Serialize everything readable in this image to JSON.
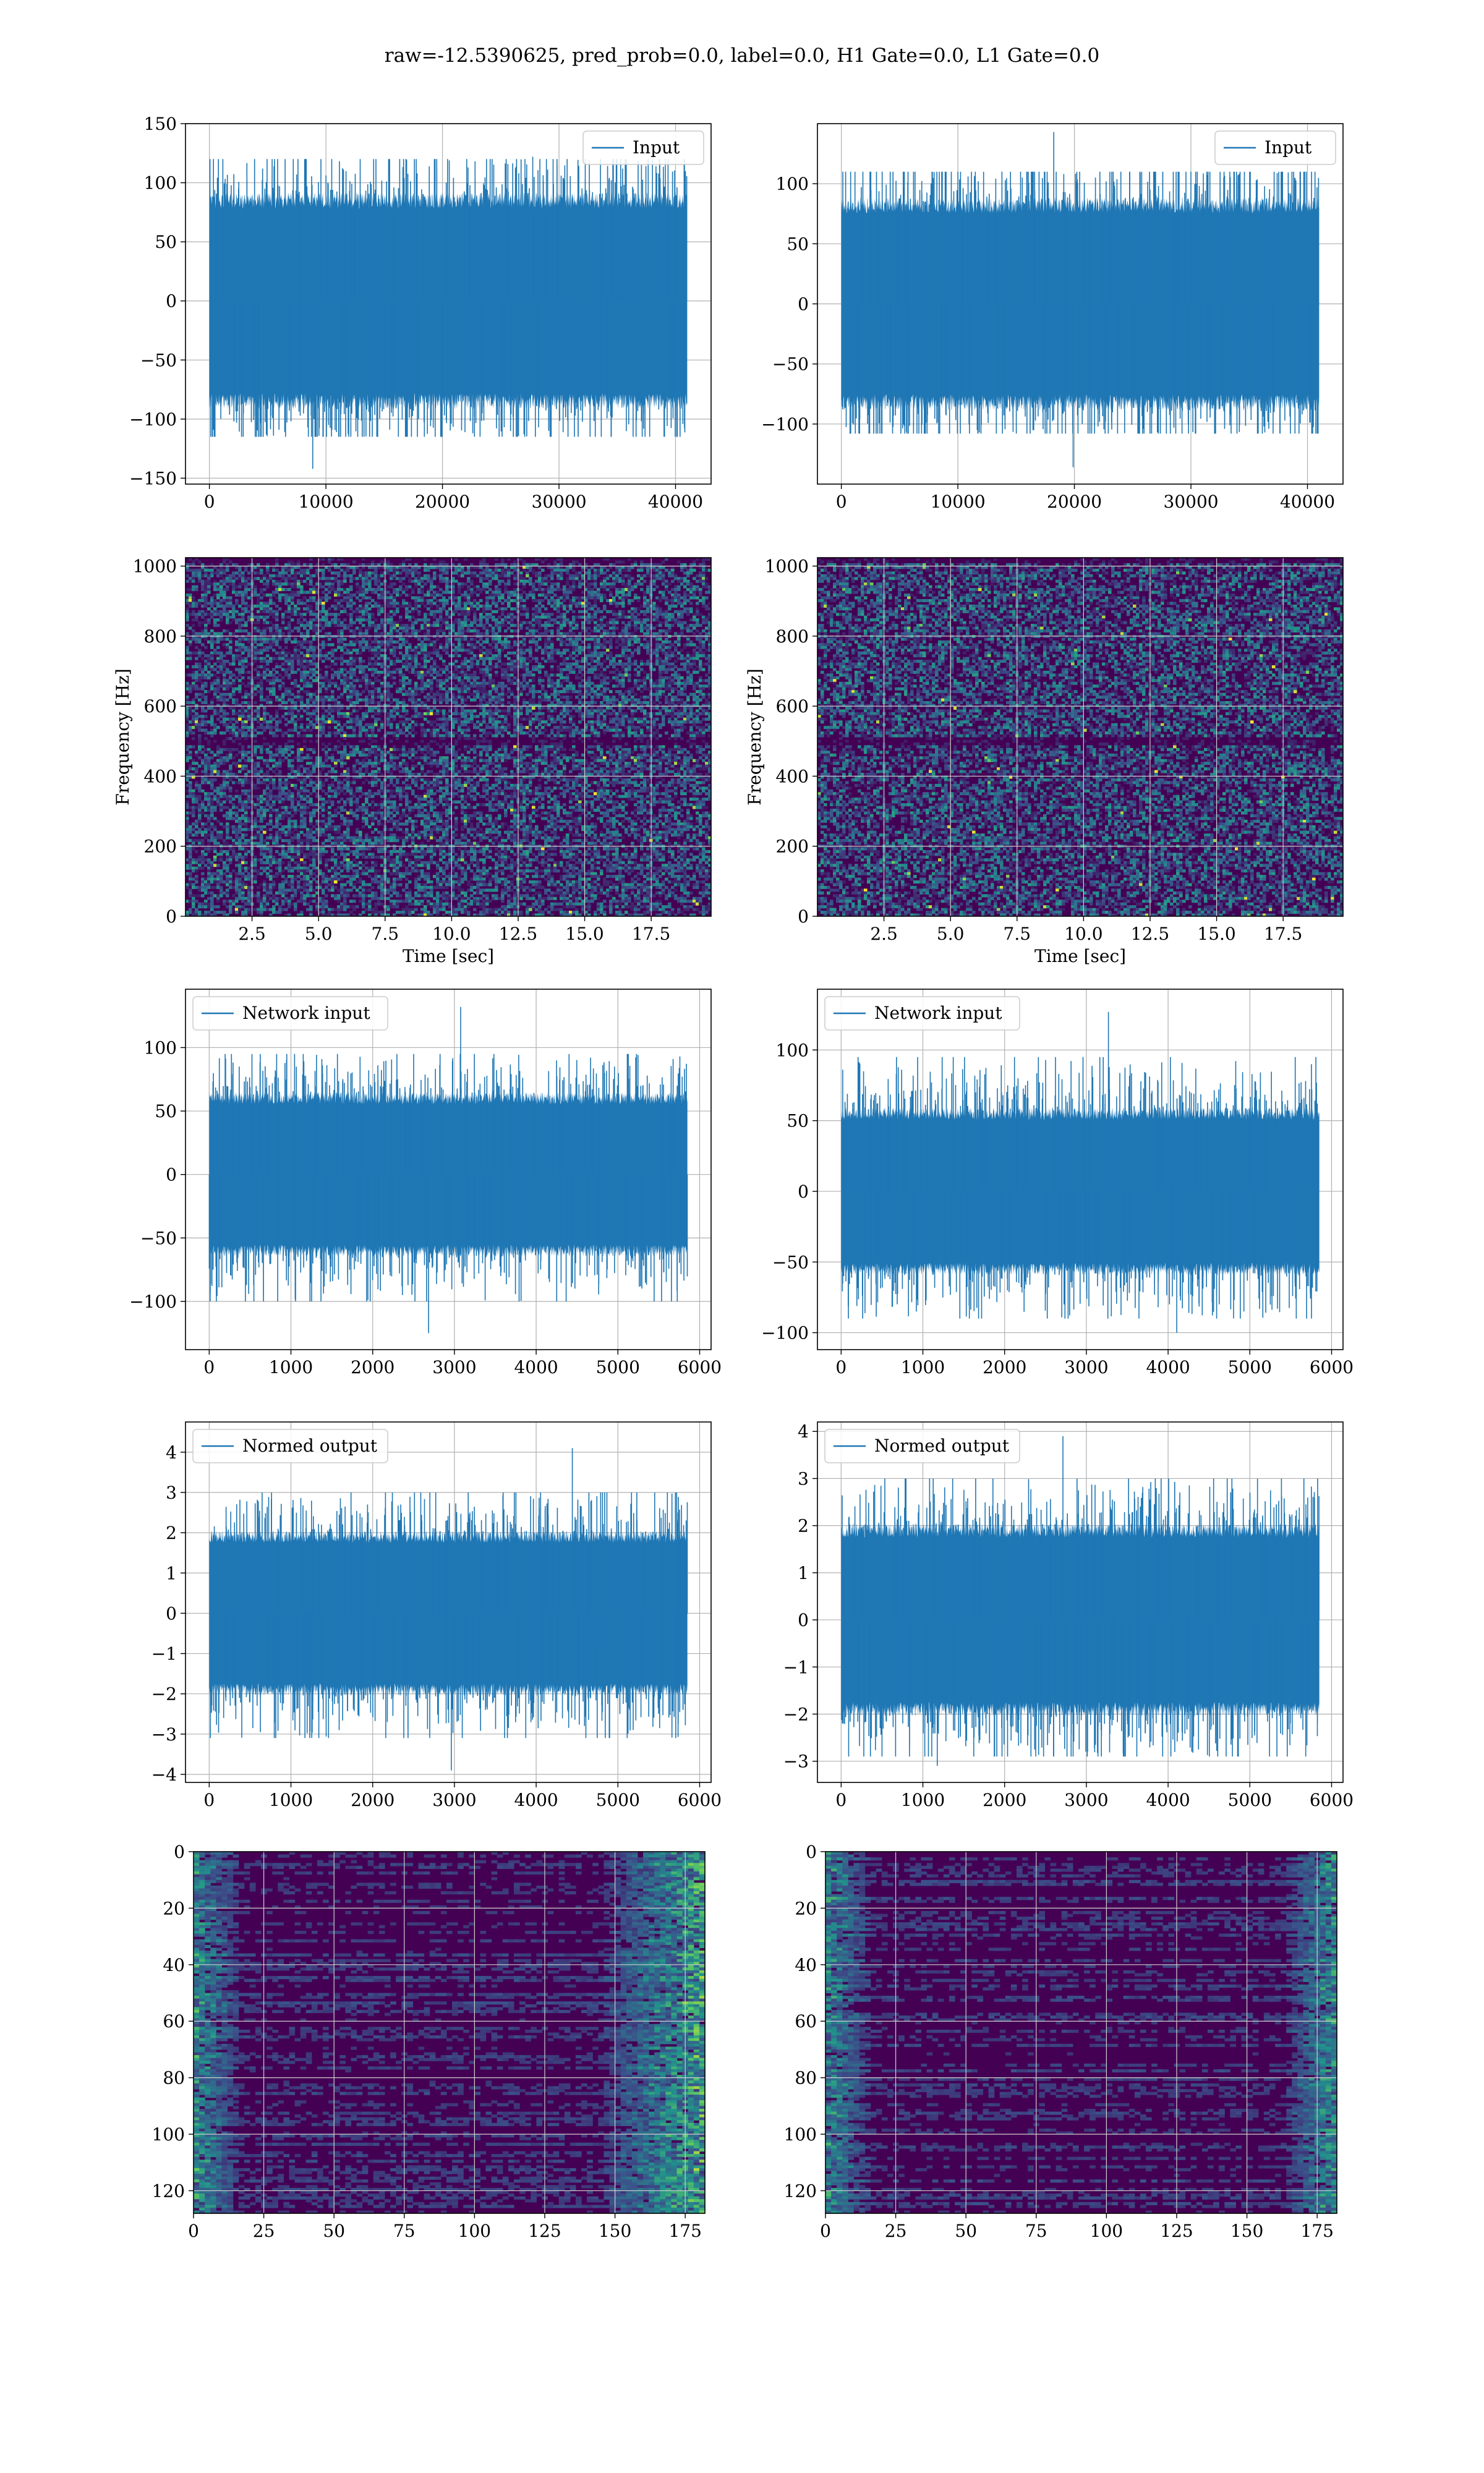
{
  "title": "raw=-12.5390625, pred_prob=0.0, label=0.0, H1 Gate=0.0, L1 Gate=0.0",
  "colors": {
    "line": "#1f77b4",
    "grid": "#b0b0b0",
    "viridis_low": "#440154",
    "viridis_mid1": "#3b528b",
    "viridis_mid2": "#21918c",
    "viridis_mid3": "#5ec962",
    "viridis_high": "#fde725"
  },
  "chart_data": [
    {
      "id": "row1-left",
      "type": "line",
      "legend": "Input",
      "legend_loc": "upper right",
      "xlim": [
        -2050,
        43050
      ],
      "ylim": [
        -155,
        150
      ],
      "xticks": [
        0,
        10000,
        20000,
        30000,
        40000
      ],
      "yticks": [
        -150,
        -100,
        -50,
        0,
        50,
        100,
        150
      ],
      "series": [
        {
          "x_range": [
            0,
            41000
          ],
          "envelope": [
            -85,
            85
          ],
          "typical_peak": [
            -115,
            120
          ],
          "max": 122,
          "min": -142
        }
      ]
    },
    {
      "id": "row1-right",
      "type": "line",
      "legend": "Input",
      "legend_loc": "upper right",
      "xlim": [
        -2050,
        43050
      ],
      "ylim": [
        -150,
        150
      ],
      "xticks": [
        0,
        10000,
        20000,
        30000,
        40000
      ],
      "yticks": [
        -100,
        -50,
        0,
        50,
        100
      ],
      "series": [
        {
          "x_range": [
            0,
            41000
          ],
          "envelope": [
            -82,
            82
          ],
          "typical_peak": [
            -108,
            110
          ],
          "max": 143,
          "min": -136
        }
      ]
    },
    {
      "id": "row2-left",
      "type": "heatmap",
      "subtype": "spectrogram",
      "xlabel": "Time [sec]",
      "ylabel": "Frequency [Hz]",
      "xlim": [
        0,
        19.75
      ],
      "ylim": [
        0,
        1024
      ],
      "xticks": [
        2.5,
        5.0,
        7.5,
        10.0,
        12.5,
        15.0,
        17.5
      ],
      "yticks": [
        0,
        200,
        400,
        600,
        800,
        1000
      ],
      "dark_band_hz": [
        500,
        1000
      ]
    },
    {
      "id": "row2-right",
      "type": "heatmap",
      "subtype": "spectrogram",
      "xlabel": "Time [sec]",
      "ylabel": "Frequency [Hz]",
      "xlim": [
        0,
        19.75
      ],
      "ylim": [
        0,
        1024
      ],
      "xticks": [
        2.5,
        5.0,
        7.5,
        10.0,
        12.5,
        15.0,
        17.5
      ],
      "yticks": [
        0,
        200,
        400,
        600,
        800,
        1000
      ],
      "dark_band_hz": [
        500,
        1000
      ]
    },
    {
      "id": "row3-left",
      "type": "line",
      "legend": "Network input",
      "legend_loc": "upper left",
      "xlim": [
        -290,
        6140
      ],
      "ylim": [
        -138,
        146
      ],
      "xticks": [
        0,
        1000,
        2000,
        3000,
        4000,
        5000,
        6000
      ],
      "yticks": [
        -100,
        -50,
        0,
        50,
        100
      ],
      "series": [
        {
          "x_range": [
            0,
            5850
          ],
          "envelope": [
            -60,
            60
          ],
          "typical_peak": [
            -100,
            95
          ],
          "max": 132,
          "min": -125
        }
      ]
    },
    {
      "id": "row3-right",
      "type": "line",
      "legend": "Network input",
      "legend_loc": "upper left",
      "xlim": [
        -290,
        6140
      ],
      "ylim": [
        -112,
        143
      ],
      "xticks": [
        0,
        1000,
        2000,
        3000,
        4000,
        5000,
        6000
      ],
      "yticks": [
        -100,
        -50,
        0,
        50,
        100
      ],
      "series": [
        {
          "x_range": [
            0,
            5850
          ],
          "envelope": [
            -55,
            55
          ],
          "typical_peak": [
            -90,
            95
          ],
          "max": 127,
          "min": -100
        }
      ]
    },
    {
      "id": "row4-left",
      "type": "line",
      "legend": "Normed output",
      "legend_loc": "upper left",
      "xlim": [
        -290,
        6140
      ],
      "ylim": [
        -4.2,
        4.75
      ],
      "xticks": [
        0,
        1000,
        2000,
        3000,
        4000,
        5000,
        6000
      ],
      "yticks": [
        -4,
        -3,
        -2,
        -1,
        0,
        1,
        2,
        3,
        4
      ],
      "series": [
        {
          "x_range": [
            0,
            5850
          ],
          "envelope": [
            -1.9,
            1.9
          ],
          "typical_peak": [
            -3.1,
            3.0
          ],
          "max": 4.1,
          "min": -3.9
        }
      ]
    },
    {
      "id": "row4-right",
      "type": "line",
      "legend": "Normed output",
      "legend_loc": "upper left",
      "xlim": [
        -290,
        6140
      ],
      "ylim": [
        -3.45,
        4.2
      ],
      "xticks": [
        0,
        1000,
        2000,
        3000,
        4000,
        5000,
        6000
      ],
      "yticks": [
        -3,
        -2,
        -1,
        0,
        1,
        2,
        3,
        4
      ],
      "series": [
        {
          "x_range": [
            0,
            5850
          ],
          "envelope": [
            -1.9,
            1.9
          ],
          "typical_peak": [
            -2.9,
            3.0
          ],
          "max": 3.9,
          "min": -3.1
        }
      ]
    },
    {
      "id": "row5-left",
      "type": "heatmap",
      "subtype": "matrix",
      "xlim": [
        0,
        182
      ],
      "ylim_inverted": [
        0,
        128
      ],
      "xticks": [
        0,
        25,
        50,
        75,
        100,
        125,
        150,
        175
      ],
      "yticks": [
        0,
        20,
        40,
        60,
        80,
        100,
        120
      ],
      "bright_regions": [
        "left edge columns 0-15",
        "right edge columns 150-182"
      ]
    },
    {
      "id": "row5-right",
      "type": "heatmap",
      "subtype": "matrix",
      "xlim": [
        0,
        182
      ],
      "ylim_inverted": [
        0,
        128
      ],
      "xticks": [
        0,
        25,
        50,
        75,
        100,
        125,
        150,
        175
      ],
      "yticks": [
        0,
        20,
        40,
        60,
        80,
        100,
        120
      ],
      "bright_regions": [
        "left edge columns 0-15",
        "right edge columns 165-182"
      ]
    }
  ]
}
